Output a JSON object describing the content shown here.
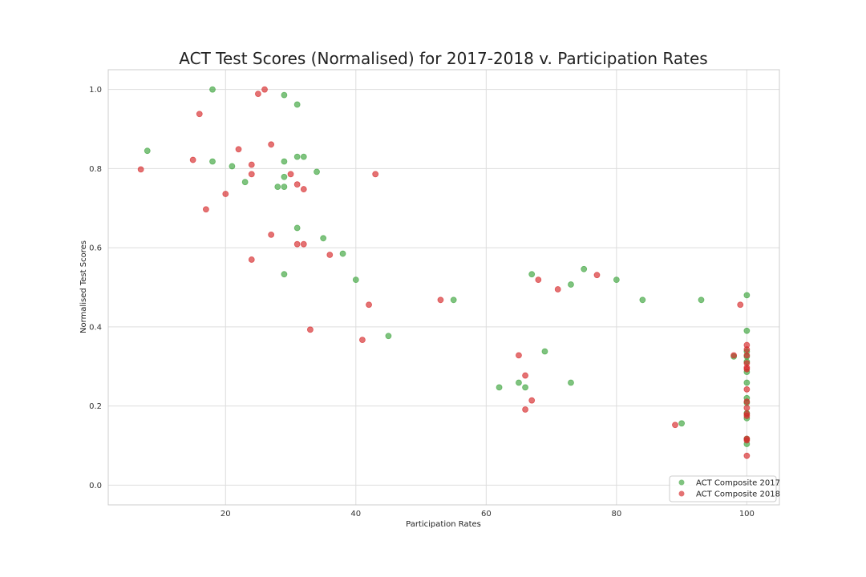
{
  "chart_data": {
    "type": "scatter",
    "title": "ACT Test Scores (Normalised) for 2017-2018 v. Participation Rates",
    "xlabel": "Participation Rates",
    "ylabel": "Normalised Test Scores",
    "xlim": [
      2,
      105
    ],
    "ylim": [
      -0.05,
      1.05
    ],
    "xticks": [
      20,
      40,
      60,
      80,
      100
    ],
    "yticks": [
      0.0,
      0.2,
      0.4,
      0.6,
      0.8,
      1.0
    ],
    "grid": true,
    "legend_position": "bottom-right",
    "series": [
      {
        "name": "ACT Composite 2017",
        "color": "#3aa33a",
        "points": [
          [
            8,
            0.845
          ],
          [
            18,
            1.0
          ],
          [
            18,
            0.818
          ],
          [
            21,
            0.806
          ],
          [
            23,
            0.766
          ],
          [
            28,
            0.754
          ],
          [
            29,
            0.986
          ],
          [
            29,
            0.818
          ],
          [
            29,
            0.779
          ],
          [
            29,
            0.754
          ],
          [
            29,
            0.533
          ],
          [
            31,
            0.962
          ],
          [
            31,
            0.83
          ],
          [
            31,
            0.65
          ],
          [
            32,
            0.83
          ],
          [
            34,
            0.792
          ],
          [
            35,
            0.624
          ],
          [
            38,
            0.585
          ],
          [
            40,
            0.519
          ],
          [
            45,
            0.377
          ],
          [
            55,
            0.468
          ],
          [
            62,
            0.247
          ],
          [
            65,
            0.259
          ],
          [
            66,
            0.247
          ],
          [
            67,
            0.533
          ],
          [
            69,
            0.338
          ],
          [
            73,
            0.507
          ],
          [
            73,
            0.259
          ],
          [
            75,
            0.546
          ],
          [
            80,
            0.519
          ],
          [
            84,
            0.468
          ],
          [
            90,
            0.156
          ],
          [
            93,
            0.468
          ],
          [
            98,
            0.325
          ],
          [
            100,
            0.48
          ],
          [
            100,
            0.39
          ],
          [
            100,
            0.338
          ],
          [
            100,
            0.325
          ],
          [
            100,
            0.312
          ],
          [
            100,
            0.286
          ],
          [
            100,
            0.259
          ],
          [
            100,
            0.22
          ],
          [
            100,
            0.208
          ],
          [
            100,
            0.182
          ],
          [
            100,
            0.169
          ],
          [
            100,
            0.117
          ],
          [
            100,
            0.104
          ]
        ]
      },
      {
        "name": "ACT Composite 2018",
        "color": "#d62728",
        "points": [
          [
            7,
            0.798
          ],
          [
            15,
            0.822
          ],
          [
            16,
            0.938
          ],
          [
            17,
            0.697
          ],
          [
            20,
            0.736
          ],
          [
            22,
            0.849
          ],
          [
            24,
            0.81
          ],
          [
            24,
            0.786
          ],
          [
            24,
            0.57
          ],
          [
            25,
            0.989
          ],
          [
            26,
            1.0
          ],
          [
            27,
            0.861
          ],
          [
            27,
            0.633
          ],
          [
            30,
            0.786
          ],
          [
            31,
            0.76
          ],
          [
            31,
            0.609
          ],
          [
            32,
            0.748
          ],
          [
            32,
            0.609
          ],
          [
            33,
            0.393
          ],
          [
            36,
            0.582
          ],
          [
            41,
            0.367
          ],
          [
            42,
            0.456
          ],
          [
            43,
            0.786
          ],
          [
            53,
            0.468
          ],
          [
            65,
            0.328
          ],
          [
            66,
            0.277
          ],
          [
            66,
            0.191
          ],
          [
            67,
            0.214
          ],
          [
            68,
            0.519
          ],
          [
            71,
            0.495
          ],
          [
            77,
            0.531
          ],
          [
            89,
            0.152
          ],
          [
            98,
            0.328
          ],
          [
            99,
            0.456
          ],
          [
            100,
            0.354
          ],
          [
            100,
            0.343
          ],
          [
            100,
            0.328
          ],
          [
            100,
            0.308
          ],
          [
            100,
            0.297
          ],
          [
            100,
            0.293
          ],
          [
            100,
            0.242
          ],
          [
            100,
            0.211
          ],
          [
            100,
            0.195
          ],
          [
            100,
            0.18
          ],
          [
            100,
            0.175
          ],
          [
            100,
            0.117
          ],
          [
            100,
            0.113
          ],
          [
            100,
            0.074
          ]
        ]
      }
    ]
  }
}
